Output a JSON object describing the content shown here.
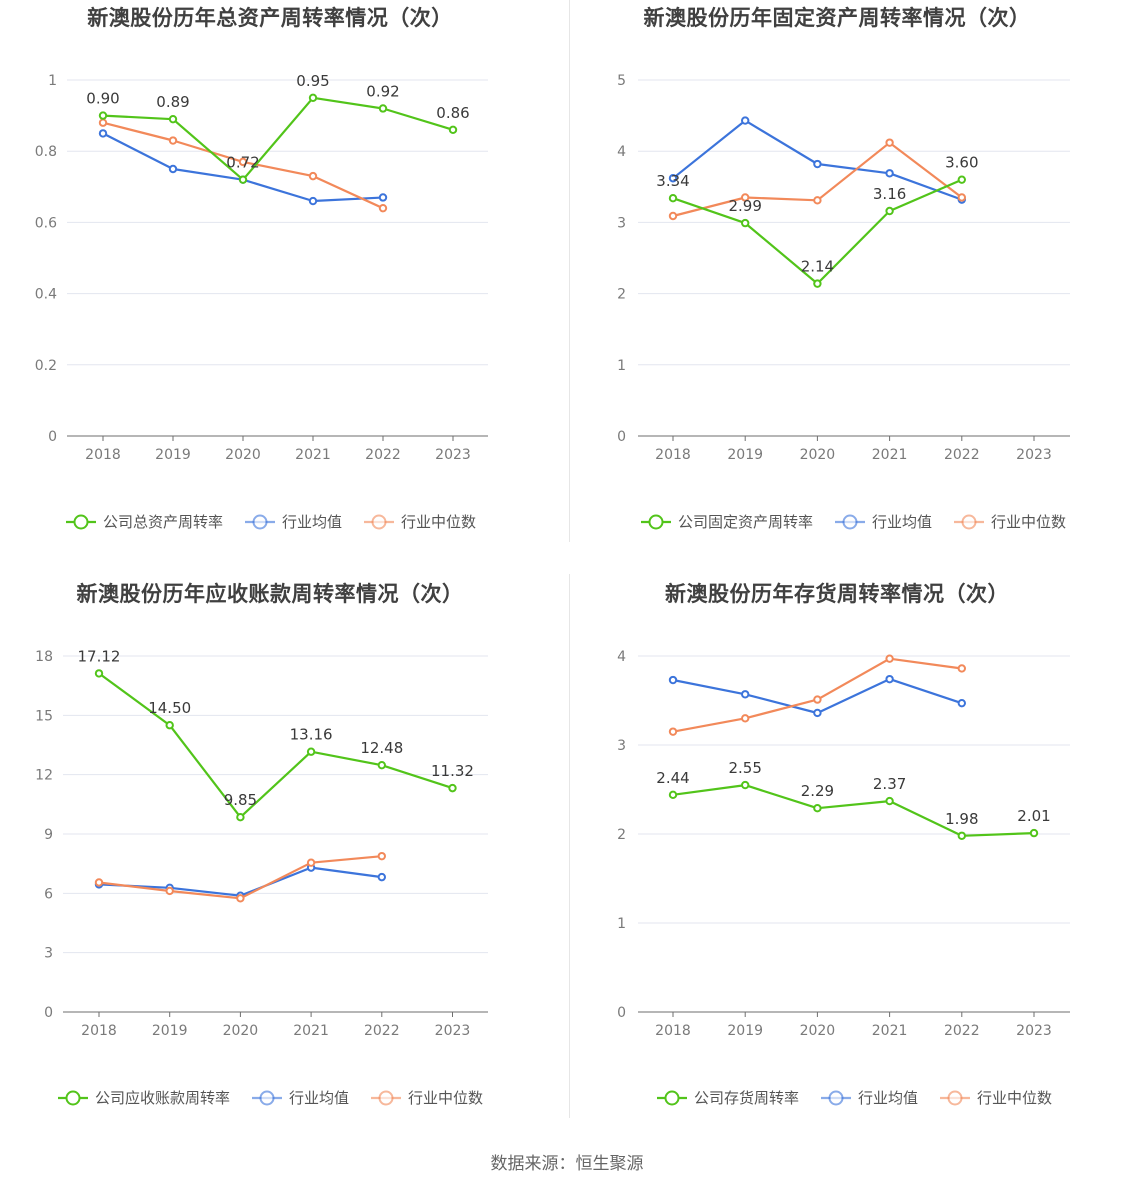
{
  "footer": "数据来源：恒生聚源",
  "chart_data": [
    {
      "type": "line",
      "title": "新澳股份历年总资产周转率情况（次）",
      "categories": [
        "2018",
        "2019",
        "2020",
        "2021",
        "2022",
        "2023"
      ],
      "ylim": [
        0,
        1
      ],
      "yticks": [
        0,
        0.2,
        0.4,
        0.6,
        0.8,
        1
      ],
      "ytick_labels": [
        "0",
        "0.2",
        "0.4",
        "0.6",
        "0.8",
        "1"
      ],
      "grid": true,
      "legend_position": "bottom",
      "series": [
        {
          "name": "公司总资产周转率",
          "color": "#52c41a",
          "labeled": true,
          "values": [
            0.9,
            0.89,
            0.72,
            0.95,
            0.92,
            0.86
          ],
          "labels": [
            "0.90",
            "0.89",
            "0.72",
            "0.95",
            "0.92",
            "0.86"
          ]
        },
        {
          "name": "行业均值",
          "color": "#3c74db",
          "labeled": false,
          "values": [
            0.85,
            0.75,
            0.72,
            0.66,
            0.67,
            null
          ]
        },
        {
          "name": "行业中位数",
          "color": "#f2895a",
          "labeled": false,
          "values": [
            0.88,
            0.83,
            0.77,
            0.73,
            0.64,
            null
          ]
        }
      ]
    },
    {
      "type": "line",
      "title": "新澳股份历年固定资产周转率情况（次）",
      "categories": [
        "2018",
        "2019",
        "2020",
        "2021",
        "2022",
        "2023"
      ],
      "ylim": [
        0,
        5
      ],
      "yticks": [
        0,
        1,
        2,
        3,
        4,
        5
      ],
      "ytick_labels": [
        "0",
        "1",
        "2",
        "3",
        "4",
        "5"
      ],
      "grid": true,
      "legend_position": "bottom",
      "series": [
        {
          "name": "公司固定资产周转率",
          "color": "#52c41a",
          "labeled": true,
          "values": [
            3.34,
            2.99,
            2.14,
            3.16,
            3.6,
            null
          ],
          "labels": [
            "3.34",
            "2.99",
            "2.14",
            "3.16",
            "3.60",
            null
          ]
        },
        {
          "name": "行业均值",
          "color": "#3c74db",
          "labeled": false,
          "values": [
            3.62,
            4.43,
            3.82,
            3.69,
            3.32,
            null
          ]
        },
        {
          "name": "行业中位数",
          "color": "#f2895a",
          "labeled": false,
          "values": [
            3.09,
            3.35,
            3.31,
            4.12,
            3.35,
            null
          ]
        }
      ]
    },
    {
      "type": "line",
      "title": "新澳股份历年应收账款周转率情况（次）",
      "categories": [
        "2018",
        "2019",
        "2020",
        "2021",
        "2022",
        "2023"
      ],
      "ylim": [
        0,
        18
      ],
      "yticks": [
        0,
        3,
        6,
        9,
        12,
        15,
        18
      ],
      "ytick_labels": [
        "0",
        "3",
        "6",
        "9",
        "12",
        "15",
        "18"
      ],
      "grid": true,
      "legend_position": "bottom",
      "series": [
        {
          "name": "公司应收账款周转率",
          "color": "#52c41a",
          "labeled": true,
          "values": [
            17.12,
            14.5,
            9.85,
            13.16,
            12.48,
            11.32
          ],
          "labels": [
            "17.12",
            "14.50",
            "9.85",
            "13.16",
            "12.48",
            "11.32"
          ]
        },
        {
          "name": "行业均值",
          "color": "#3c74db",
          "labeled": false,
          "values": [
            6.45,
            6.28,
            5.88,
            7.3,
            6.82,
            null
          ]
        },
        {
          "name": "行业中位数",
          "color": "#f2895a",
          "labeled": false,
          "values": [
            6.55,
            6.12,
            5.75,
            7.55,
            7.88,
            null
          ]
        }
      ]
    },
    {
      "type": "line",
      "title": "新澳股份历年存货周转率情况（次）",
      "categories": [
        "2018",
        "2019",
        "2020",
        "2021",
        "2022",
        "2023"
      ],
      "ylim": [
        0,
        4
      ],
      "yticks": [
        0,
        1,
        2,
        3,
        4
      ],
      "ytick_labels": [
        "0",
        "1",
        "2",
        "3",
        "4"
      ],
      "grid": true,
      "legend_position": "bottom",
      "series": [
        {
          "name": "公司存货周转率",
          "color": "#52c41a",
          "labeled": true,
          "values": [
            2.44,
            2.55,
            2.29,
            2.37,
            1.98,
            2.01
          ],
          "labels": [
            "2.44",
            "2.55",
            "2.29",
            "2.37",
            "1.98",
            "2.01"
          ]
        },
        {
          "name": "行业均值",
          "color": "#3c74db",
          "labeled": false,
          "values": [
            3.73,
            3.57,
            3.36,
            3.74,
            3.47,
            null
          ]
        },
        {
          "name": "行业中位数",
          "color": "#f2895a",
          "labeled": false,
          "values": [
            3.15,
            3.3,
            3.51,
            3.97,
            3.86,
            null
          ]
        }
      ]
    }
  ]
}
